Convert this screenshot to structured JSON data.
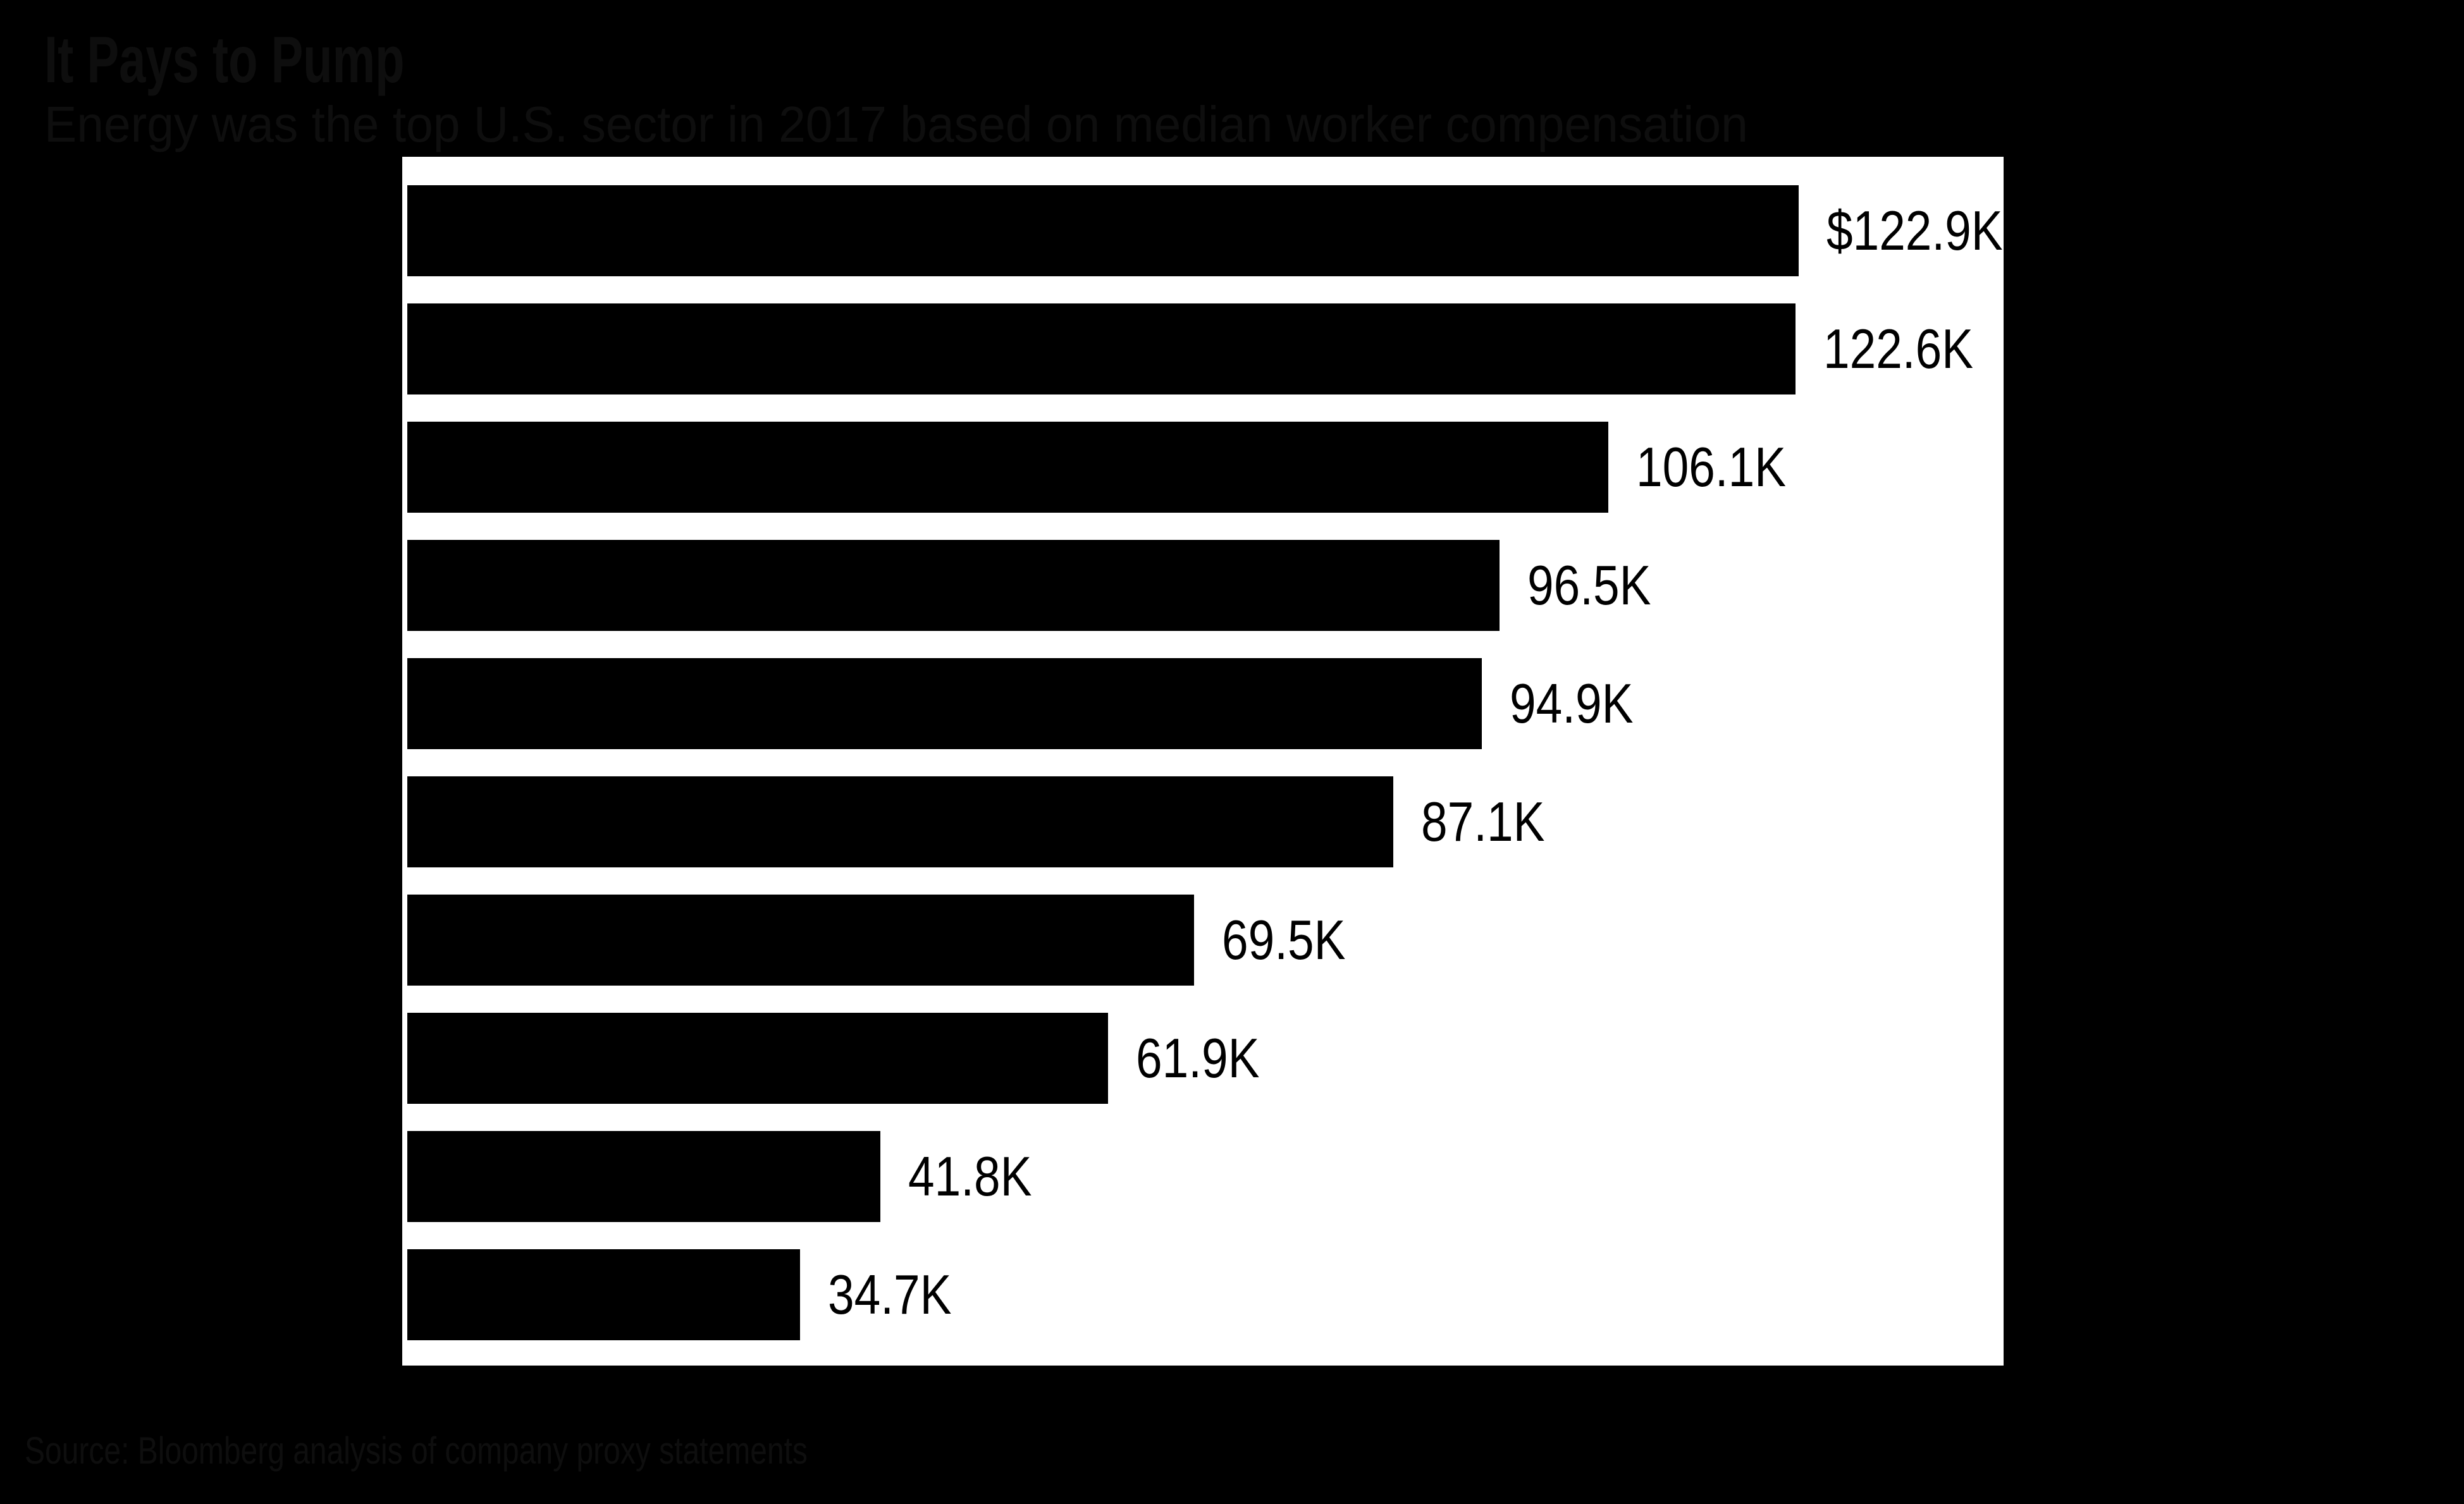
{
  "chart_data": {
    "type": "bar",
    "orientation": "horizontal",
    "title": "It Pays to Pump",
    "subtitle": "Energy was the top U.S. sector in 2017 based on median worker compensation",
    "source_note": "Source: Bloomberg analysis of company proxy statements",
    "unit": "USD thousands",
    "values": [
      122.9,
      122.6,
      106.1,
      96.5,
      94.9,
      87.1,
      69.5,
      61.9,
      41.8,
      34.7
    ],
    "value_labels": [
      "$122.9K",
      "122.6K",
      "106.1K",
      "96.5K",
      "94.9K",
      "87.1K",
      "69.5K",
      "61.9K",
      "41.8K",
      "34.7K"
    ],
    "categories_visible": false,
    "xlim": [
      0,
      141
    ],
    "grid": false,
    "legend": false,
    "colors": {
      "page_background": "#000000",
      "plot_background": "#ffffff",
      "bar": "#000000",
      "value_label": "#000000",
      "header_text": "#0e0e0e"
    }
  }
}
